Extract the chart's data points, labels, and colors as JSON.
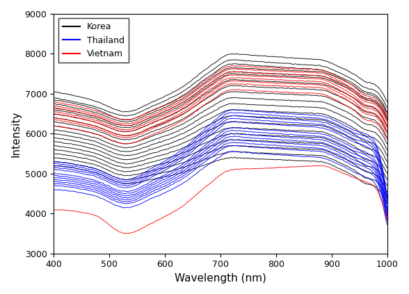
{
  "title": "",
  "xlabel": "Wavelength (nm)",
  "ylabel": "Intensity",
  "xlim": [
    400,
    1000
  ],
  "ylim": [
    3000,
    9000
  ],
  "xticks": [
    400,
    500,
    600,
    700,
    800,
    900,
    1000
  ],
  "yticks": [
    3000,
    4000,
    5000,
    6000,
    7000,
    8000,
    9000
  ],
  "legend_labels": [
    "Korea",
    "Thailand",
    "Vietnam"
  ],
  "legend_colors": [
    "black",
    "blue",
    "red"
  ],
  "background_color": "#ffffff",
  "linewidth": 0.7,
  "korea_curves": [
    {
      "v400": 6900,
      "v530": 6450,
      "v720": 7850,
      "v880": 7700,
      "v970": 7100,
      "v1000": 6600
    },
    {
      "v400": 6750,
      "v530": 6300,
      "v720": 7650,
      "v880": 7550,
      "v970": 6950,
      "v1000": 6450
    },
    {
      "v400": 6600,
      "v530": 6150,
      "v720": 7500,
      "v880": 7400,
      "v970": 6800,
      "v1000": 6300
    },
    {
      "v400": 6500,
      "v530": 6050,
      "v720": 7350,
      "v880": 7250,
      "v970": 6650,
      "v1000": 6150
    },
    {
      "v400": 6400,
      "v530": 5950,
      "v720": 7200,
      "v880": 7100,
      "v970": 6500,
      "v1000": 6000
    },
    {
      "v400": 6300,
      "v530": 5850,
      "v720": 7050,
      "v880": 6950,
      "v970": 6350,
      "v1000": 5850
    },
    {
      "v400": 6200,
      "v530": 5750,
      "v720": 6900,
      "v880": 6800,
      "v970": 6200,
      "v1000": 5700
    },
    {
      "v400": 6100,
      "v530": 5650,
      "v720": 6750,
      "v880": 6650,
      "v970": 6050,
      "v1000": 5550
    },
    {
      "v400": 6000,
      "v530": 5550,
      "v720": 6600,
      "v880": 6500,
      "v970": 5900,
      "v1000": 5400
    },
    {
      "v400": 5900,
      "v530": 5450,
      "v720": 6450,
      "v880": 6350,
      "v970": 5750,
      "v1000": 5250
    },
    {
      "v400": 5800,
      "v530": 5350,
      "v720": 6300,
      "v880": 6200,
      "v970": 5600,
      "v1000": 5100
    },
    {
      "v400": 5700,
      "v530": 5250,
      "v720": 6150,
      "v880": 6050,
      "v970": 5450,
      "v1000": 4950
    },
    {
      "v400": 5600,
      "v530": 5150,
      "v720": 6000,
      "v880": 5900,
      "v970": 5300,
      "v1000": 4800
    },
    {
      "v400": 5500,
      "v530": 5050,
      "v720": 5850,
      "v880": 5750,
      "v970": 5150,
      "v1000": 4650
    },
    {
      "v400": 5400,
      "v530": 4950,
      "v720": 5700,
      "v880": 5600,
      "v970": 5000,
      "v1000": 4500
    },
    {
      "v400": 5300,
      "v530": 4850,
      "v720": 5550,
      "v880": 5450,
      "v970": 4850,
      "v1000": 4350
    },
    {
      "v400": 5200,
      "v530": 4750,
      "v720": 5400,
      "v880": 5300,
      "v970": 4700,
      "v1000": 4200
    },
    {
      "v400": 7050,
      "v530": 6550,
      "v720": 8000,
      "v880": 7850,
      "v970": 7250,
      "v1000": 6750
    },
    {
      "v400": 6850,
      "v530": 6350,
      "v720": 7750,
      "v880": 7600,
      "v970": 7000,
      "v1000": 6500
    },
    {
      "v400": 6650,
      "v530": 6200,
      "v720": 7550,
      "v880": 7450,
      "v970": 6850,
      "v1000": 6350
    }
  ],
  "thailand_curves": [
    {
      "v400": 5300,
      "v530": 4850,
      "v720": 6600,
      "v880": 6450,
      "v970": 5850,
      "v1000": 4300
    },
    {
      "v400": 5200,
      "v530": 4750,
      "v720": 6450,
      "v880": 6300,
      "v970": 5700,
      "v1000": 4200
    },
    {
      "v400": 5100,
      "v530": 4650,
      "v720": 6300,
      "v880": 6150,
      "v970": 5550,
      "v1000": 4100
    },
    {
      "v400": 5000,
      "v530": 4550,
      "v720": 6150,
      "v880": 6000,
      "v970": 5400,
      "v1000": 4000
    },
    {
      "v400": 4900,
      "v530": 4450,
      "v720": 6000,
      "v880": 5850,
      "v970": 5250,
      "v1000": 3900
    },
    {
      "v400": 4800,
      "v530": 4350,
      "v720": 5850,
      "v880": 5700,
      "v970": 5100,
      "v1000": 3800
    },
    {
      "v400": 4700,
      "v530": 4250,
      "v720": 5700,
      "v880": 5550,
      "v970": 4950,
      "v1000": 3700
    },
    {
      "v400": 4600,
      "v530": 4150,
      "v720": 5550,
      "v880": 5400,
      "v970": 4800,
      "v1000": 3600
    },
    {
      "v400": 5150,
      "v530": 4700,
      "v720": 6380,
      "v880": 6230,
      "v970": 5630,
      "v1000": 4150
    },
    {
      "v400": 4950,
      "v530": 4500,
      "v720": 6080,
      "v880": 5930,
      "v970": 5330,
      "v1000": 3950
    },
    {
      "v400": 4850,
      "v530": 4400,
      "v720": 5930,
      "v880": 5780,
      "v970": 5180,
      "v1000": 3850
    },
    {
      "v400": 4750,
      "v530": 4300,
      "v720": 5780,
      "v880": 5630,
      "v970": 5030,
      "v1000": 3750
    },
    {
      "v400": 5250,
      "v530": 4800,
      "v720": 6530,
      "v880": 6380,
      "v970": 5780,
      "v1000": 4250
    }
  ],
  "vietnam_curves": [
    {
      "v400": 6800,
      "v530": 6350,
      "v720": 7700,
      "v880": 7600,
      "v970": 6900,
      "v1000": 6400
    },
    {
      "v400": 6650,
      "v530": 6200,
      "v720": 7550,
      "v880": 7450,
      "v970": 6750,
      "v1000": 6250
    },
    {
      "v400": 6500,
      "v530": 6050,
      "v720": 7400,
      "v880": 7300,
      "v970": 6600,
      "v1000": 6100
    },
    {
      "v400": 6350,
      "v530": 5900,
      "v720": 7250,
      "v880": 7150,
      "v970": 6450,
      "v1000": 5950
    },
    {
      "v400": 6200,
      "v530": 5750,
      "v720": 7100,
      "v880": 7000,
      "v970": 6300,
      "v1000": 5800
    },
    {
      "v400": 6700,
      "v530": 6250,
      "v720": 7620,
      "v880": 7520,
      "v970": 6820,
      "v1000": 6320
    },
    {
      "v400": 6550,
      "v530": 6100,
      "v720": 7470,
      "v880": 7370,
      "v970": 6670,
      "v1000": 6170
    },
    {
      "v400": 6400,
      "v530": 5950,
      "v720": 7320,
      "v880": 7220,
      "v970": 6520,
      "v1000": 6020
    },
    {
      "v400": 4100,
      "v530": 3500,
      "v720": 5100,
      "v880": 5200,
      "v970": 4700,
      "v1000": 3700
    }
  ]
}
